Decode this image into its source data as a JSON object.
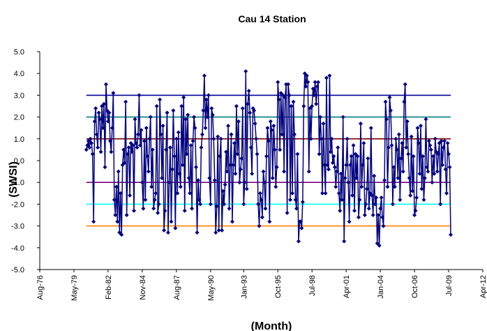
{
  "chart_data": {
    "type": "line",
    "title": "Cau 14 Station",
    "ylabel": "(SWSI)",
    "xlabel": "(Month)",
    "color": "#000080",
    "xlim": [
      "1976-08",
      "2012-04"
    ],
    "xticks": [
      {
        "value": "1976-08",
        "label": "Aug-76"
      },
      {
        "value": "1979-05",
        "label": "May-79"
      },
      {
        "value": "1982-02",
        "label": "Feb-82"
      },
      {
        "value": "1984-11",
        "label": "Nov-84"
      },
      {
        "value": "1987-08",
        "label": "Aug-87"
      },
      {
        "value": "1990-05",
        "label": "May-90"
      },
      {
        "value": "1993-01",
        "label": "Jan-93"
      },
      {
        "value": "1995-10",
        "label": "Oct-95"
      },
      {
        "value": "1998-07",
        "label": "Jul-98"
      },
      {
        "value": "2001-04",
        "label": "Apr-01"
      },
      {
        "value": "2004-01",
        "label": "Jan-04"
      },
      {
        "value": "2006-10",
        "label": "Oct-06"
      },
      {
        "value": "2009-07",
        "label": "Jul-09"
      },
      {
        "value": "2012-04",
        "label": "Apr-12"
      }
    ],
    "ylim": [
      -5,
      5
    ],
    "yticks": [
      {
        "value": 5,
        "label": "5.0"
      },
      {
        "value": 4,
        "label": "4.0"
      },
      {
        "value": 3,
        "label": "3.0"
      },
      {
        "value": 2,
        "label": "2.0"
      },
      {
        "value": 1,
        "label": "1.0"
      },
      {
        "value": 0,
        "label": "0.0"
      },
      {
        "value": -1,
        "label": "-1.0"
      },
      {
        "value": -2,
        "label": "-2.0"
      },
      {
        "value": -3,
        "label": "-3.0"
      },
      {
        "value": -4,
        "label": "-4.0"
      },
      {
        "value": -5,
        "label": "-5.0"
      }
    ],
    "reference_lines": [
      {
        "value": 3,
        "color": "#000099"
      },
      {
        "value": 2,
        "color": "#008080"
      },
      {
        "value": 1,
        "color": "#800000"
      },
      {
        "value": -1,
        "color": "#800080"
      },
      {
        "value": -2,
        "color": "#00ffff"
      },
      {
        "value": -3,
        "color": "#ff8000"
      }
    ],
    "x": [
      "1980-05",
      "1980-06",
      "1980-07",
      "1980-08",
      "1980-09",
      "1980-10",
      "1980-11",
      "1980-12",
      "1981-01",
      "1981-02",
      "1981-03",
      "1981-04",
      "1981-05",
      "1981-06",
      "1981-07",
      "1981-08",
      "1981-09",
      "1981-10",
      "1981-11",
      "1981-12",
      "1982-01",
      "1982-02",
      "1982-03",
      "1982-04",
      "1982-05",
      "1982-06",
      "1982-07",
      "1982-08",
      "1982-09",
      "1982-10",
      "1982-11",
      "1982-12",
      "1983-01",
      "1983-02",
      "1983-03",
      "1983-04",
      "1983-05",
      "1983-06",
      "1983-07",
      "1983-08",
      "1983-09",
      "1983-10",
      "1983-11",
      "1983-12",
      "1984-01",
      "1984-02",
      "1984-03",
      "1984-04",
      "1984-05",
      "1984-06",
      "1984-07",
      "1984-08",
      "1984-09",
      "1984-10",
      "1984-11",
      "1984-12",
      "1985-01",
      "1985-02",
      "1985-03",
      "1985-04",
      "1985-05",
      "1985-06",
      "1985-07",
      "1985-08",
      "1985-09",
      "1985-10",
      "1985-11",
      "1985-12",
      "1986-01",
      "1986-02",
      "1986-03",
      "1986-04",
      "1986-05",
      "1986-06",
      "1986-07",
      "1986-08",
      "1986-09",
      "1986-10",
      "1986-11",
      "1986-12",
      "1987-01",
      "1987-02",
      "1987-03",
      "1987-04",
      "1987-05",
      "1987-06",
      "1987-07",
      "1987-08",
      "1987-09",
      "1987-10",
      "1987-11",
      "1987-12",
      "1988-01",
      "1988-02",
      "1988-03",
      "1988-04",
      "1988-05",
      "1988-06",
      "1988-07",
      "1988-08",
      "1988-09",
      "1988-10",
      "1988-11",
      "1988-12",
      "1989-01",
      "1989-02",
      "1989-03",
      "1989-04",
      "1989-05",
      "1989-06",
      "1989-07",
      "1989-08",
      "1989-09",
      "1989-10",
      "1989-11",
      "1989-12",
      "1990-01",
      "1990-02",
      "1990-03",
      "1990-04",
      "1990-05",
      "1990-06",
      "1990-07",
      "1990-08",
      "1990-09",
      "1990-10",
      "1990-11",
      "1990-12",
      "1991-01",
      "1991-02",
      "1991-03",
      "1991-04",
      "1991-05",
      "1991-06",
      "1991-07",
      "1991-08",
      "1991-09",
      "1991-10",
      "1991-11",
      "1991-12",
      "1992-01",
      "1992-02",
      "1992-03",
      "1992-04",
      "1992-05",
      "1992-06",
      "1992-07",
      "1992-08",
      "1992-09",
      "1992-10",
      "1992-11",
      "1992-12",
      "1993-01",
      "1993-02",
      "1993-03",
      "1993-04",
      "1993-05",
      "1993-06",
      "1993-07",
      "1993-08",
      "1993-09",
      "1993-10",
      "1993-11",
      "1993-12",
      "1994-01",
      "1994-02",
      "1994-03",
      "1994-04",
      "1994-05",
      "1994-06",
      "1994-07",
      "1994-08",
      "1994-09",
      "1994-10",
      "1994-11",
      "1994-12",
      "1995-01",
      "1995-02",
      "1995-03",
      "1995-04",
      "1995-05",
      "1995-06",
      "1995-07",
      "1995-08",
      "1995-09",
      "1995-10",
      "1995-11",
      "1995-12",
      "1996-01",
      "1996-02",
      "1996-03",
      "1996-04",
      "1996-05",
      "1996-06",
      "1996-07",
      "1996-08",
      "1996-09",
      "1996-10",
      "1996-11",
      "1996-12",
      "1997-01",
      "1997-02",
      "1997-03",
      "1997-04",
      "1997-05",
      "1997-06",
      "1997-07",
      "1997-08",
      "1997-09",
      "1997-10",
      "1997-11",
      "1997-12",
      "1998-01",
      "1998-02",
      "1998-03",
      "1998-04",
      "1998-05",
      "1998-06",
      "1998-07",
      "1998-08",
      "1998-09",
      "1998-10",
      "1998-11",
      "1998-12",
      "1999-01",
      "1999-02",
      "1999-03",
      "1999-04",
      "1999-05",
      "1999-06",
      "1999-07",
      "1999-08",
      "1999-09",
      "1999-10",
      "1999-11",
      "1999-12",
      "2000-01",
      "2000-02",
      "2000-03",
      "2000-04",
      "2000-05",
      "2000-06",
      "2000-07",
      "2000-08",
      "2000-09",
      "2000-10",
      "2000-11",
      "2000-12",
      "2001-01",
      "2001-02",
      "2001-03",
      "2001-04",
      "2001-05",
      "2001-06",
      "2001-07",
      "2001-08",
      "2001-09",
      "2001-10",
      "2001-11",
      "2001-12",
      "2002-01",
      "2002-02",
      "2002-03",
      "2002-04",
      "2002-05",
      "2002-06",
      "2002-07",
      "2002-08",
      "2002-09",
      "2002-10",
      "2002-11",
      "2002-12",
      "2003-01",
      "2003-02",
      "2003-03",
      "2003-04",
      "2003-05",
      "2003-06",
      "2003-07",
      "2003-08",
      "2003-09",
      "2003-10",
      "2003-11",
      "2003-12",
      "2004-01",
      "2004-02",
      "2004-03",
      "2004-04",
      "2004-05",
      "2004-06",
      "2004-07",
      "2004-08",
      "2004-09",
      "2004-10",
      "2004-11",
      "2004-12",
      "2005-01",
      "2005-02",
      "2005-03",
      "2005-04",
      "2005-05",
      "2005-06",
      "2005-07",
      "2005-08",
      "2005-09",
      "2005-10",
      "2005-11",
      "2005-12",
      "2006-01",
      "2006-02",
      "2006-03",
      "2006-04",
      "2006-05",
      "2006-06",
      "2006-07",
      "2006-08",
      "2006-09",
      "2006-10",
      "2006-11",
      "2006-12",
      "2007-01",
      "2007-02",
      "2007-03",
      "2007-04",
      "2007-05",
      "2007-06",
      "2007-07",
      "2007-08",
      "2007-09",
      "2007-10",
      "2007-11",
      "2007-12",
      "2008-01",
      "2008-02",
      "2008-03",
      "2008-04",
      "2008-05",
      "2008-06",
      "2008-07",
      "2008-08",
      "2008-09",
      "2008-10",
      "2008-11",
      "2008-12",
      "2009-01",
      "2009-02",
      "2009-03",
      "2009-04",
      "2009-05",
      "2009-06",
      "2009-07",
      "2009-08",
      "2009-09"
    ],
    "values": [
      0.5,
      0.7,
      0.9,
      0.6,
      1.0,
      0.8,
      0.3,
      -2.8,
      1.8,
      2.4,
      1.2,
      0.6,
      2.2,
      1.9,
      0.4,
      2.5,
      1.5,
      2.6,
      -0.3,
      3.5,
      2.3,
      1.8,
      2.2,
      0.9,
      0.4,
      1.5,
      3.1,
      -1.8,
      -2.5,
      -1.2,
      -2.8,
      -0.5,
      -3.3,
      -1.5,
      -3.4,
      -0.2,
      0.5,
      -0.1,
      2.7,
      -2.5,
      0.3,
      0.6,
      -1.6,
      0.8,
      0.4,
      0.7,
      -2.3,
      1.9,
      0.8,
      0.6,
      1.2,
      3.0,
      0.7,
      1.4,
      -1.0,
      -2.2,
      0.9,
      -1.8,
      1.5,
      0.2,
      -0.5,
      1.0,
      2.0,
      -1.2,
      0.5,
      -2.2,
      -1.8,
      -1.5,
      2.5,
      -2.4,
      -2.0,
      2.8,
      1.2,
      -0.8,
      1.6,
      -3.2,
      -2.3,
      0.5,
      2.2,
      -3.3,
      -1.0,
      0.6,
      -2.8,
      -0.4,
      2.3,
      0.2,
      -3.1,
      1.0,
      -1.5,
      1.3,
      -0.6,
      -1.2,
      2.5,
      -0.2,
      2.9,
      -2.3,
      1.9,
      0.3,
      2.1,
      -0.8,
      -1.5,
      0.7,
      -2.2,
      0.9,
      2.0,
      1.5,
      -0.3,
      -3.3,
      -0.9,
      -1.8,
      -2.0,
      0.6,
      1.2,
      2.3,
      3.9,
      1.5,
      2.8,
      2.0,
      3.0,
      -0.8,
      -2.0,
      2.4,
      2.1,
      1.0,
      -0.9,
      -3.3,
      -2.1,
      1.1,
      -3.2,
      0.2,
      1.0,
      -3.2,
      -1.4,
      -2.0,
      -1.1,
      0.4,
      -0.5,
      1.6,
      -2.2,
      -0.2,
      1.2,
      -2.8,
      -0.2,
      0.8,
      -0.6,
      2.5,
      0.3,
      1.8,
      -1.0,
      -0.4,
      0.1,
      2.4,
      -2.0,
      -1.0,
      4.1,
      -1.3,
      2.6,
      3.2,
      2.2,
      0.6,
      -0.6,
      2.4,
      2.3,
      1.7,
      1.0,
      0.3,
      -2.0,
      -3.0,
      -1.5,
      -1.8,
      -2.6,
      -0.5,
      -1.0,
      -2.2,
      0.2,
      1.5,
      0.9,
      -2.8,
      1.8,
      1.4,
      -0.8,
      1.6,
      0.5,
      -1.2,
      -0.3,
      3.6,
      2.8,
      0.5,
      3.1,
      1.2,
      3.0,
      -0.5,
      2.9,
      3.5,
      -2.4,
      3.5,
      3.0,
      -1.8,
      2.5,
      -1.5,
      2.7,
      1.2,
      -1.8,
      -2.2,
      0.3,
      -3.7,
      -2.8,
      -2.8,
      -3.1,
      -1.9,
      2.5,
      4.0,
      3.4,
      3.9,
      3.6,
      -0.5,
      2.4,
      1.0,
      2.5,
      3.3,
      3.0,
      3.6,
      2.6,
      3.4,
      3.6,
      0.3,
      2.0,
      1.0,
      -1.5,
      1.7,
      -0.2,
      -1.5,
      3.8,
      -0.2,
      -0.4,
      3.9,
      0.4,
      1.0,
      -0.1,
      0.2,
      -0.3,
      -1.2,
      -0.5,
      0.6,
      -1.5,
      -2.3,
      -0.6,
      -1.8,
      2.0,
      -3.7,
      -0.8,
      -0.2,
      1.0,
      -1.0,
      -2.8,
      -0.2,
      0.2,
      -1.6,
      0.7,
      -2.3,
      0.3,
      -0.8,
      0.2,
      -2.6,
      -1.8,
      1.7,
      -1.2,
      -0.2,
      0.8,
      -2.5,
      -2.0,
      -1.3,
      0.1,
      -2.2,
      -1.5,
      1.5,
      -1.6,
      -2.5,
      -0.7,
      -2.0,
      -1.7,
      -3.8,
      -2.5,
      -3.9,
      -2.2,
      -1.7,
      -2.6,
      -3.0,
      -0.9,
      2.7,
      1.9,
      -1.2,
      0.6,
      2.9,
      2.3,
      0.7,
      -2.0,
      -0.3,
      -1.2,
      1.0,
      0.5,
      -0.8,
      1.2,
      -1.8,
      0.1,
      0.8,
      -0.5,
      2.7,
      3.5,
      0.6,
      1.8,
      0.3,
      -0.8,
      -1.6,
      1.1,
      -1.4,
      0.2,
      -2.5,
      -2.3,
      -1.7,
      1.5,
      0.8,
      -0.6,
      1.6,
      -1.3,
      0.2,
      -1.8,
      -0.8,
      1.9,
      -0.3,
      -0.5,
      0.9,
      0.7,
      0.5,
      -1.0,
      0.2,
      -0.6,
      1.0,
      0.4,
      -0.5,
      0.3,
      0.8,
      -2.0,
      0.9,
      -0.2,
      0.6,
      0.9,
      -0.4,
      -1.5,
      0.8,
      0.3,
      -0.3,
      -3.4
    ]
  }
}
